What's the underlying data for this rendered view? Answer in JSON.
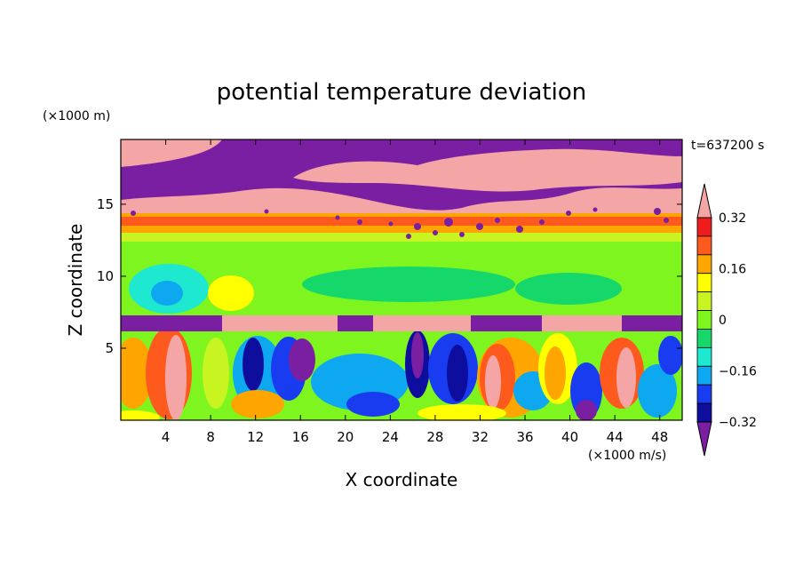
{
  "chart_data": {
    "type": "heatmap",
    "title": "potential temperature deviation",
    "xlabel": "X coordinate",
    "ylabel": "Z coordinate",
    "x_unit": "(×1000 m/s)",
    "y_unit": "(×1000 m)",
    "time_label": "t=637200 s",
    "xlim": [
      0,
      50
    ],
    "ylim": [
      0,
      19.5
    ],
    "x_ticks": [
      4,
      8,
      12,
      16,
      20,
      24,
      28,
      32,
      36,
      40,
      44,
      48
    ],
    "y_ticks": [
      5,
      10,
      15
    ],
    "colorbar": {
      "levels": [
        -0.4,
        -0.32,
        -0.24,
        -0.16,
        -0.08,
        0,
        0.08,
        0.16,
        0.24,
        0.32,
        0.4
      ],
      "tick_labels": [
        "0.32",
        "0.16",
        "0",
        "−0.16",
        "−0.32"
      ],
      "tick_values": [
        0.32,
        0.16,
        0,
        -0.16,
        -0.32
      ],
      "colors": [
        "#7b1fa2",
        "#0d0d9e",
        "#1a3cf0",
        "#0da8f0",
        "#1ee8d0",
        "#16d86a",
        "#7ef51e",
        "#c8f522",
        "#ffff00",
        "#ffa500",
        "#ff5a1e",
        "#ee1c1c",
        "#f4a6a6"
      ]
    },
    "bands": [
      {
        "z": [
          0,
          6.3
        ],
        "description": "lower convective layer with eddies",
        "dominant_value": 0
      },
      {
        "z": [
          6.3,
          7.5
        ],
        "value": -0.4
      },
      {
        "z": [
          7.5,
          12.8
        ],
        "value": 0.04
      },
      {
        "z": [
          12.8,
          14.5
        ],
        "value": 0.3
      },
      {
        "z": [
          14.5,
          17.5
        ],
        "value": 0.4
      },
      {
        "z": [
          17.5,
          19.5
        ],
        "value": -0.4
      }
    ]
  }
}
